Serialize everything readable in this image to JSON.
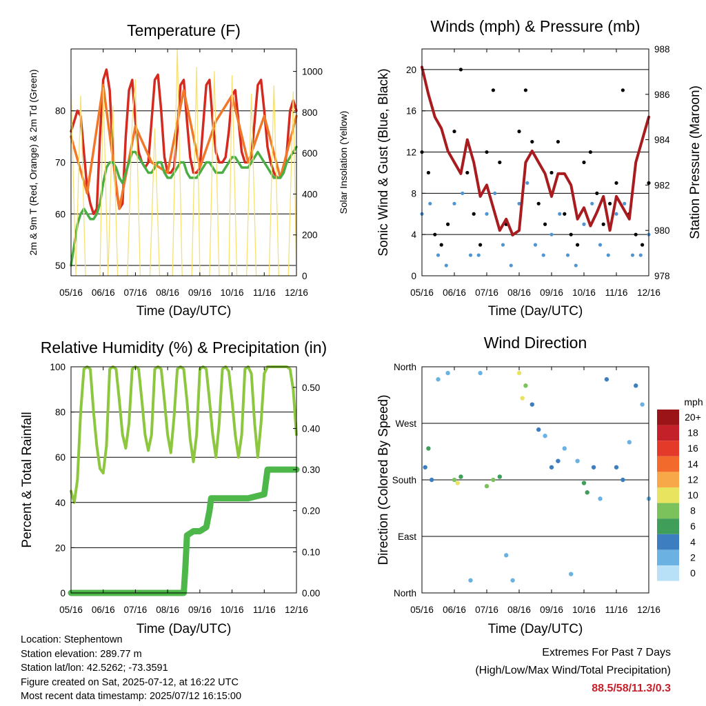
{
  "footer": {
    "location": "Location: Stephentown",
    "elevation": "Station elevation: 289.77 m",
    "latlon": "Station lat/lon: 42.5262; -73.3591",
    "created": "Figure created on Sat, 2025-07-12, at 16:22 UTC",
    "recent": "Most recent data timestamp: 2025/07/12 16:15:00"
  },
  "extremes": {
    "title": "Extremes For Past 7 Days",
    "subtitle": "(High/Low/Max Wind/Total Precipitation)",
    "value": "88.5/58/11.3/0.3",
    "value_color": "#c8202a"
  },
  "x_ticks": [
    "05/16",
    "06/16",
    "07/16",
    "08/16",
    "09/16",
    "10/16",
    "11/16",
    "12/16"
  ],
  "chart_data": [
    {
      "type": "line",
      "title": "Temperature (F)",
      "xlabel": "Time (Day/UTC)",
      "ylabel": "2m & 9m T (Red, Orange) & 2m Td (Green)",
      "ylabel_right": "Solar Insolation (Yellow)",
      "ylim": [
        48,
        92
      ],
      "ylim_right": [
        0,
        1110
      ],
      "yticks": [
        50,
        60,
        70,
        80
      ],
      "yticks_right": [
        0,
        200,
        400,
        600,
        800,
        1000
      ],
      "grid": "horizontal",
      "series": [
        {
          "color": "#d42a20",
          "x": [
            0,
            0.1,
            0.2,
            0.3,
            0.4,
            0.5,
            0.6,
            0.7,
            0.8,
            0.9,
            1.0,
            1.1,
            1.2,
            1.3,
            1.4,
            1.5,
            1.6,
            1.7,
            1.8,
            1.9,
            2.0,
            2.1,
            2.2,
            2.3,
            2.4,
            2.5,
            2.6,
            2.7,
            2.8,
            2.9,
            3.0,
            3.1,
            3.2,
            3.3,
            3.4,
            3.5,
            3.6,
            3.7,
            3.8,
            3.9,
            4.0,
            4.1,
            4.2,
            4.3,
            4.4,
            4.5,
            4.6,
            4.7,
            4.8,
            4.9,
            5.0,
            5.1,
            5.2,
            5.3,
            5.4,
            5.5,
            5.6,
            5.7,
            5.8,
            5.9,
            6.0,
            6.1,
            6.2,
            6.3,
            6.4,
            6.5,
            6.6,
            6.7,
            6.8,
            6.9,
            7.0
          ],
          "y": [
            76,
            78,
            80,
            79,
            72,
            65,
            62,
            60,
            61,
            75,
            86,
            88,
            84,
            72,
            65,
            61,
            62,
            75,
            84,
            86,
            78,
            72,
            70,
            69,
            70,
            78,
            86,
            87,
            80,
            71,
            68,
            68,
            69,
            76,
            85,
            86,
            78,
            71,
            68,
            68,
            69,
            77,
            85,
            86,
            78,
            72,
            70,
            70,
            71,
            76,
            83,
            84,
            78,
            72,
            70,
            70,
            71,
            78,
            85,
            86,
            80,
            73,
            70,
            68,
            67,
            67,
            68,
            72,
            80,
            82,
            80
          ]
        },
        {
          "color": "#f07828",
          "x": [
            0,
            0.5,
            1.0,
            1.5,
            2.0,
            2.5,
            3.0,
            3.5,
            4.0,
            4.5,
            5.0,
            5.5,
            6.0,
            6.5,
            7.0
          ],
          "y": [
            75,
            64,
            85,
            61,
            77,
            70,
            68,
            84,
            69,
            78,
            83,
            70,
            79,
            67,
            79
          ]
        },
        {
          "color": "#4aae44",
          "x": [
            0,
            0.1,
            0.2,
            0.3,
            0.4,
            0.5,
            0.6,
            0.7,
            0.8,
            0.9,
            1.0,
            1.1,
            1.2,
            1.3,
            1.4,
            1.5,
            1.6,
            1.7,
            1.8,
            1.9,
            2.0,
            2.1,
            2.2,
            2.3,
            2.4,
            2.5,
            2.6,
            2.7,
            2.8,
            2.9,
            3.0,
            3.1,
            3.2,
            3.3,
            3.4,
            3.5,
            3.6,
            3.7,
            3.8,
            3.9,
            4.0,
            4.1,
            4.2,
            4.3,
            4.4,
            4.5,
            4.6,
            4.7,
            4.8,
            4.9,
            5.0,
            5.1,
            5.2,
            5.3,
            5.4,
            5.5,
            5.6,
            5.7,
            5.8,
            5.9,
            6.0,
            6.1,
            6.2,
            6.3,
            6.4,
            6.5,
            6.6,
            6.7,
            6.8,
            6.9,
            7.0
          ],
          "y": [
            50,
            54,
            58,
            60,
            61,
            60,
            59,
            59,
            60,
            62,
            66,
            69,
            70,
            70,
            69,
            67,
            66,
            68,
            70,
            72,
            72,
            71,
            70,
            69,
            68,
            68,
            69,
            70,
            70,
            68,
            67,
            67,
            68,
            69,
            70,
            70,
            68,
            67,
            67,
            67,
            68,
            69,
            70,
            70,
            69,
            68,
            68,
            68,
            69,
            70,
            71,
            71,
            70,
            69,
            69,
            69,
            70,
            71,
            72,
            71,
            70,
            69,
            68,
            67,
            67,
            67,
            68,
            70,
            71,
            72,
            73
          ]
        },
        {
          "color": "#f7e070",
          "axis": "right",
          "x": [
            0,
            0.15,
            0.3,
            0.45,
            0.6,
            0.75,
            0.9,
            1.0,
            1.15,
            1.3,
            1.45,
            1.6,
            1.75,
            1.9,
            2.0,
            2.15,
            2.3,
            2.45,
            2.6,
            2.75,
            2.9,
            3.0,
            3.15,
            3.3,
            3.45,
            3.6,
            3.75,
            3.9,
            4.0,
            4.15,
            4.3,
            4.45,
            4.6,
            4.75,
            4.9,
            5.0,
            5.15,
            5.3,
            5.45,
            5.6,
            5.75,
            5.9,
            6.0,
            6.15,
            6.3,
            6.45,
            6.6,
            6.75,
            6.9,
            7.0
          ],
          "y": [
            930,
            0,
            880,
            0,
            0,
            0,
            0,
            920,
            0,
            830,
            0,
            0,
            0,
            760,
            960,
            0,
            0,
            0,
            720,
            0,
            0,
            0,
            0,
            1110,
            0,
            0,
            0,
            1020,
            0,
            0,
            0,
            1000,
            0,
            0,
            0,
            980,
            0,
            0,
            0,
            890,
            0,
            0,
            0,
            0,
            930,
            0,
            0,
            0,
            900,
            0
          ]
        }
      ]
    },
    {
      "type": "scatter",
      "title": "Winds (mph) & Pressure (mb)",
      "xlabel": "Time (Day/UTC)",
      "ylabel": "Sonic Wind & Gust (Blue, Black)",
      "ylabel_right": "Station Pressure (Maroon)",
      "ylim": [
        0,
        22
      ],
      "ylim_right": [
        978,
        988
      ],
      "yticks": [
        0,
        4,
        8,
        12,
        16,
        20
      ],
      "yticks_right": [
        978,
        980,
        982,
        984,
        986,
        988
      ],
      "grid": "horizontal",
      "series": [
        {
          "color": "#4f95d2",
          "x": [
            0,
            0.25,
            0.5,
            0.75,
            1.0,
            1.25,
            1.5,
            1.75,
            2.0,
            2.25,
            2.5,
            2.75,
            3.0,
            3.25,
            3.5,
            3.75,
            4.0,
            4.25,
            4.5,
            4.75,
            5.0,
            5.25,
            5.5,
            5.75,
            6.0,
            6.25,
            6.5,
            6.75,
            7.0
          ],
          "y": [
            6,
            7,
            2,
            1,
            7,
            8,
            2,
            2,
            6,
            8,
            3,
            1,
            7,
            9,
            3,
            2,
            4,
            6,
            2,
            1,
            5,
            7,
            3,
            2,
            6,
            7,
            2,
            2,
            4
          ]
        },
        {
          "color": "#000000",
          "x": [
            0,
            0.2,
            0.4,
            0.6,
            0.8,
            1.0,
            1.2,
            1.4,
            1.6,
            1.8,
            2.0,
            2.2,
            2.4,
            2.6,
            2.8,
            3.0,
            3.2,
            3.4,
            3.6,
            3.8,
            4.0,
            4.2,
            4.4,
            4.6,
            4.8,
            5.0,
            5.2,
            5.4,
            5.6,
            5.8,
            6.0,
            6.2,
            6.4,
            6.6,
            6.8,
            7.0
          ],
          "y": [
            12,
            10,
            4,
            3,
            5,
            14,
            20,
            10,
            6,
            3,
            12,
            18,
            11,
            5,
            4,
            14,
            18,
            13,
            7,
            5,
            10,
            13,
            6,
            4,
            3,
            11,
            12,
            8,
            5,
            7,
            9,
            18,
            6,
            4,
            3,
            9
          ]
        },
        {
          "color": "#a81c20",
          "axis": "right",
          "x": [
            0,
            0.2,
            0.4,
            0.6,
            0.8,
            1.0,
            1.2,
            1.4,
            1.6,
            1.8,
            2.0,
            2.2,
            2.4,
            2.6,
            2.8,
            3.0,
            3.2,
            3.4,
            3.6,
            3.8,
            4.0,
            4.2,
            4.4,
            4.6,
            4.8,
            5.0,
            5.2,
            5.4,
            5.6,
            5.8,
            6.0,
            6.2,
            6.4,
            6.6,
            6.8,
            7.0
          ],
          "y": [
            987.2,
            986,
            985,
            984.5,
            983.5,
            983,
            982.5,
            984,
            983,
            981.5,
            982,
            981,
            980,
            980.5,
            979.8,
            980,
            983,
            983.5,
            983,
            982.5,
            981.5,
            982.5,
            982.5,
            982,
            980.5,
            981,
            980.2,
            980.8,
            981.5,
            980,
            981.5,
            981,
            980.5,
            983,
            984,
            985
          ]
        }
      ]
    },
    {
      "type": "line",
      "title": "Relative Humidity (%) & Precipitation (in)",
      "xlabel": "Time (Day/UTC)",
      "ylabel": "Percent & Total Rainfall",
      "ylim": [
        0,
        100
      ],
      "ylim_right": [
        0,
        0.55
      ],
      "yticks": [
        0,
        20,
        40,
        60,
        80,
        100
      ],
      "yticks_right": [
        "0.00",
        "0.10",
        "0.20",
        "0.30",
        "0.40",
        "0.50"
      ],
      "grid": "horizontal",
      "series": [
        {
          "color": "#8dc63f",
          "x": [
            0,
            0.1,
            0.2,
            0.3,
            0.4,
            0.5,
            0.6,
            0.7,
            0.8,
            0.9,
            1.0,
            1.1,
            1.2,
            1.3,
            1.4,
            1.5,
            1.6,
            1.7,
            1.8,
            1.9,
            2.0,
            2.1,
            2.2,
            2.3,
            2.4,
            2.5,
            2.6,
            2.7,
            2.8,
            2.9,
            3.0,
            3.1,
            3.2,
            3.3,
            3.4,
            3.5,
            3.6,
            3.7,
            3.8,
            3.9,
            4.0,
            4.1,
            4.2,
            4.3,
            4.4,
            4.5,
            4.6,
            4.7,
            4.8,
            4.9,
            5.0,
            5.1,
            5.2,
            5.3,
            5.4,
            5.5,
            5.6,
            5.7,
            5.8,
            5.9,
            6.0,
            6.1,
            6.2,
            6.3,
            6.4,
            6.5,
            6.6,
            6.7,
            6.8,
            6.9,
            7.0
          ],
          "y": [
            45,
            40,
            50,
            80,
            99,
            100,
            99,
            80,
            65,
            55,
            53,
            65,
            99,
            100,
            99,
            85,
            70,
            64,
            75,
            99,
            100,
            99,
            85,
            70,
            63,
            70,
            99,
            100,
            99,
            85,
            70,
            62,
            78,
            99,
            100,
            99,
            85,
            68,
            58,
            70,
            99,
            100,
            99,
            85,
            70,
            60,
            75,
            99,
            100,
            98,
            85,
            70,
            60,
            70,
            99,
            100,
            97,
            75,
            60,
            75,
            97,
            100,
            100,
            100,
            100,
            100,
            100,
            100,
            99,
            90,
            70
          ]
        },
        {
          "color": "#4db849",
          "axis": "right",
          "x": [
            0,
            0.5,
            1.0,
            1.5,
            2.0,
            2.5,
            3.0,
            3.4,
            3.5,
            3.55,
            3.6,
            3.8,
            4.0,
            4.2,
            4.3,
            4.35,
            4.5,
            5.0,
            5.5,
            6.0,
            6.1,
            6.2,
            6.5,
            7.0
          ],
          "y": [
            0,
            0,
            0,
            0,
            0,
            0,
            0,
            0,
            0,
            0.06,
            0.14,
            0.15,
            0.15,
            0.16,
            0.2,
            0.23,
            0.23,
            0.23,
            0.23,
            0.24,
            0.3,
            0.3,
            0.3,
            0.3
          ]
        }
      ]
    },
    {
      "type": "scatter",
      "title": "Wind Direction",
      "xlabel": "Time (Day/UTC)",
      "ylabel": "Direction (Colored By Speed)",
      "ylim": [
        0,
        360
      ],
      "yticks": [
        "North",
        "East",
        "South",
        "West",
        "North"
      ],
      "grid": "horizontal",
      "legend_title": "mph",
      "legend": [
        {
          "label": "20+",
          "color": "#9a1418"
        },
        {
          "label": "18",
          "color": "#c4202a"
        },
        {
          "label": "16",
          "color": "#e43a2a"
        },
        {
          "label": "14",
          "color": "#f26a2c"
        },
        {
          "label": "12",
          "color": "#f7a848"
        },
        {
          "label": "10",
          "color": "#e8e460"
        },
        {
          "label": "8",
          "color": "#7cc25c"
        },
        {
          "label": "6",
          "color": "#3e9e5a"
        },
        {
          "label": "4",
          "color": "#3d7ec0"
        },
        {
          "label": "2",
          "color": "#6bb2e2"
        },
        {
          "label": "0",
          "color": "#b8e0f6"
        }
      ],
      "series": [
        {
          "x": [
            0.1,
            0.2,
            0.3,
            0.5,
            0.8,
            1.0,
            1.1,
            1.2,
            1.5,
            1.8,
            2.0,
            2.2,
            2.4,
            2.6,
            2.8,
            3.0,
            3.1,
            3.2,
            3.4,
            3.6,
            3.8,
            4.0,
            4.2,
            4.4,
            4.6,
            4.8,
            5.0,
            5.1,
            5.3,
            5.5,
            5.7,
            6.0,
            6.2,
            6.4,
            6.6,
            6.8,
            7.0
          ],
          "y": [
            200,
            230,
            180,
            340,
            350,
            180,
            175,
            185,
            20,
            350,
            170,
            180,
            185,
            60,
            20,
            350,
            310,
            330,
            300,
            260,
            250,
            200,
            210,
            230,
            30,
            210,
            175,
            160,
            200,
            150,
            340,
            200,
            180,
            240,
            330,
            300,
            150
          ],
          "speed": [
            4,
            6,
            3,
            2,
            2,
            8,
            10,
            6,
            2,
            1,
            7,
            8,
            6,
            1,
            2,
            9,
            10,
            8,
            4,
            3,
            2,
            3,
            4,
            2,
            1,
            2,
            6,
            5,
            3,
            2,
            3,
            4,
            3,
            2,
            3,
            2,
            1
          ]
        }
      ]
    }
  ]
}
